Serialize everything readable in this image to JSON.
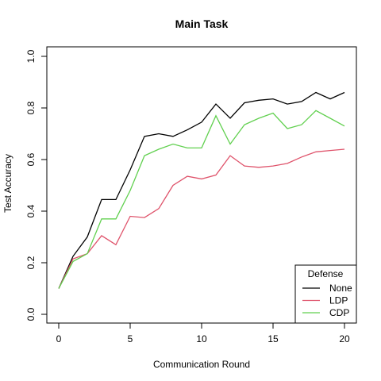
{
  "chart_data": {
    "type": "line",
    "title": "Main Task",
    "xlabel": "Communication Round",
    "ylabel": "Test Accuracy",
    "xlim": [
      0,
      20
    ],
    "ylim": [
      0,
      1
    ],
    "x_ticks": [
      0,
      5,
      10,
      15,
      20
    ],
    "y_ticks": [
      "0.0",
      "0.2",
      "0.4",
      "0.6",
      "0.8",
      "1.0"
    ],
    "x": [
      0,
      1,
      2,
      3,
      4,
      5,
      6,
      7,
      8,
      9,
      10,
      11,
      12,
      13,
      14,
      15,
      16,
      17,
      18,
      19,
      20
    ],
    "series": [
      {
        "name": "None",
        "color": "#000000",
        "values": [
          0.1,
          0.225,
          0.3,
          0.445,
          0.445,
          0.56,
          0.69,
          0.7,
          0.69,
          0.715,
          0.745,
          0.815,
          0.76,
          0.82,
          0.83,
          0.835,
          0.815,
          0.825,
          0.86,
          0.835,
          0.86
        ]
      },
      {
        "name": "LDP",
        "color": "#DF536B",
        "values": [
          0.1,
          0.215,
          0.235,
          0.305,
          0.27,
          0.38,
          0.375,
          0.41,
          0.5,
          0.535,
          0.525,
          0.54,
          0.615,
          0.575,
          0.57,
          0.575,
          0.585,
          0.61,
          0.63,
          0.635,
          0.64
        ]
      },
      {
        "name": "CDP",
        "color": "#61D04F",
        "values": [
          0.1,
          0.205,
          0.235,
          0.37,
          0.37,
          0.48,
          0.615,
          0.64,
          0.66,
          0.645,
          0.645,
          0.77,
          0.66,
          0.735,
          0.76,
          0.78,
          0.72,
          0.735,
          0.79,
          0.76,
          0.73
        ]
      }
    ],
    "legend": {
      "title": "Defense",
      "position": "bottom-right"
    },
    "grid": false
  }
}
